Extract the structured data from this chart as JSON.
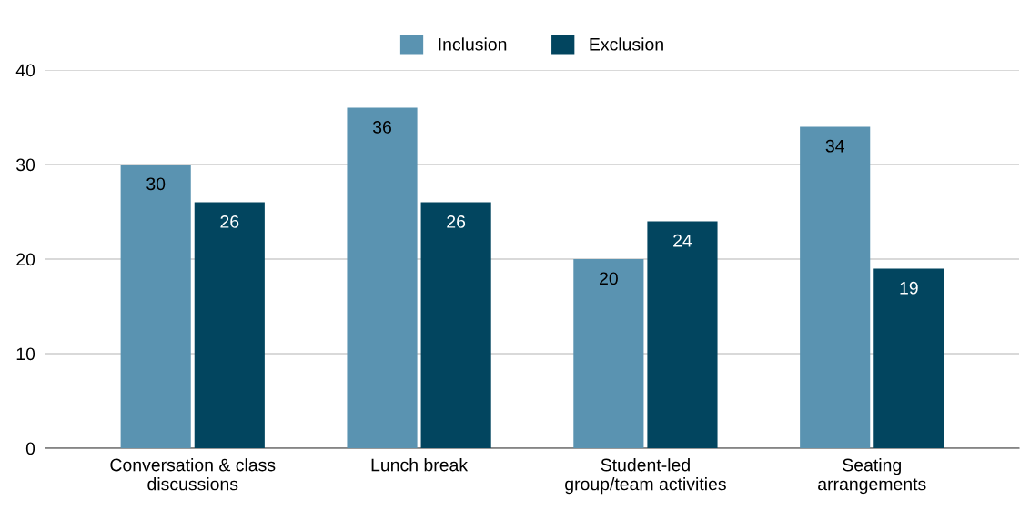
{
  "chart_data": {
    "type": "bar",
    "categories": [
      "Conversation & class\ndiscussions",
      "Lunch break",
      "Student-led\ngroup/team activities",
      "Seating\narrangements"
    ],
    "series": [
      {
        "name": "Inclusion",
        "color": "#5a93b1",
        "values": [
          30,
          36,
          20,
          34
        ]
      },
      {
        "name": "Exclusion",
        "color": "#02455f",
        "values": [
          26,
          26,
          24,
          19
        ]
      }
    ],
    "ylim": [
      0,
      40
    ],
    "yticks": [
      0,
      10,
      20,
      30,
      40
    ],
    "grid": "y",
    "legend": "top",
    "data_labels": true
  }
}
